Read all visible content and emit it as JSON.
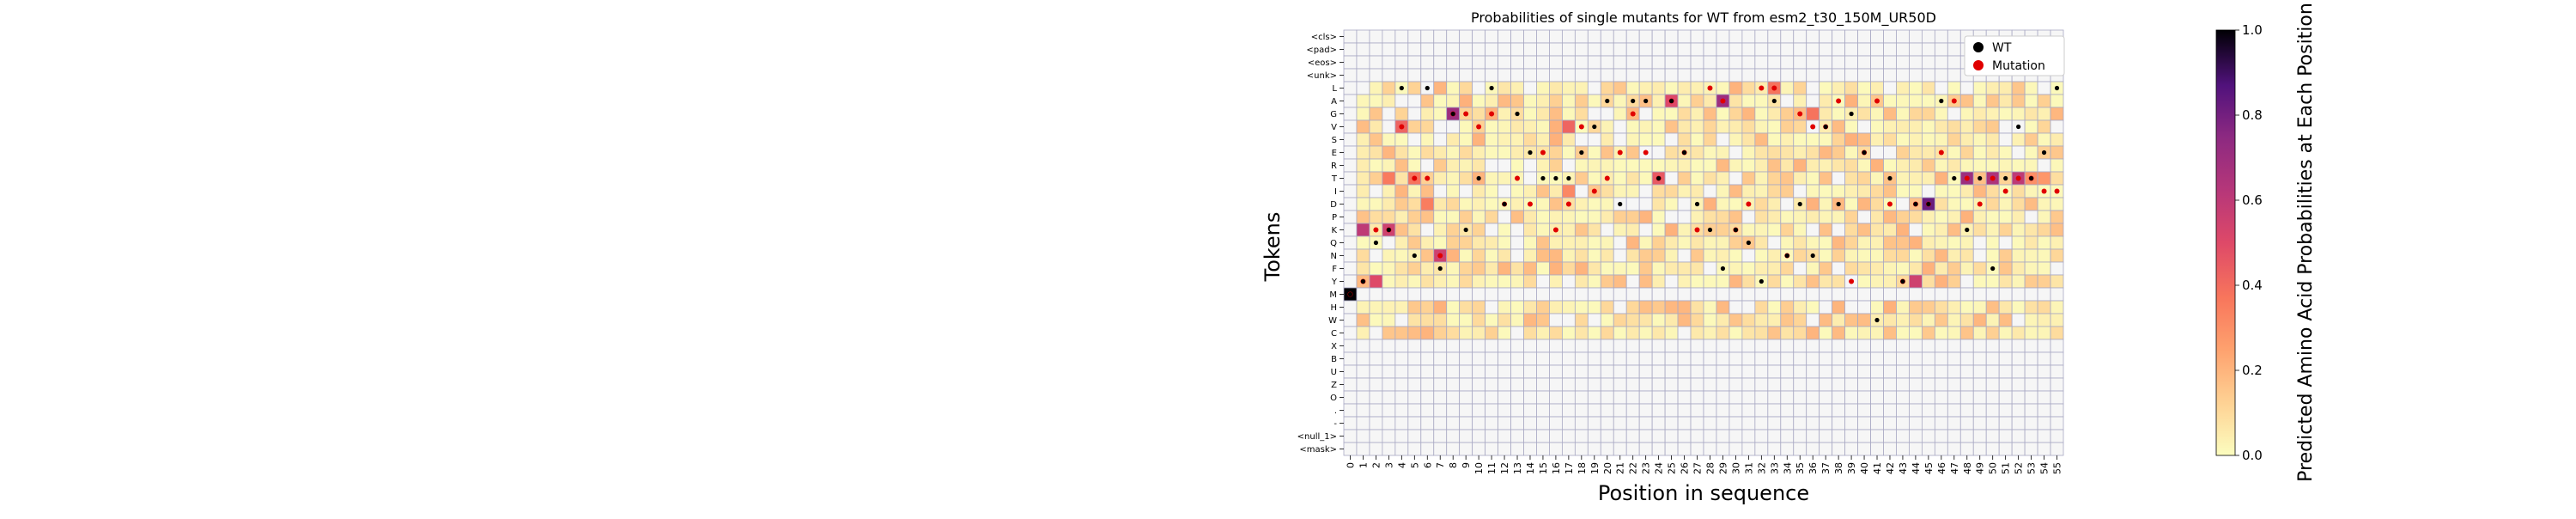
{
  "chart_data": {
    "type": "heatmap",
    "title": "Probabilities of single mutants for WT from esm2_t30_150M_UR50D",
    "xlabel": "Position in sequence",
    "ylabel": "Tokens",
    "colorbar_label": "Predicted Amino Acid Probabilities at Each Position",
    "colorbar_ticks": [
      "0.0",
      "0.2",
      "0.4",
      "0.6",
      "0.8",
      "1.0"
    ],
    "colorbar_range": [
      0,
      1
    ],
    "colormap": "magma_r",
    "positions": [
      "0",
      "1",
      "2",
      "3",
      "4",
      "5",
      "6",
      "7",
      "8",
      "9",
      "10",
      "11",
      "12",
      "13",
      "14",
      "15",
      "16",
      "17",
      "18",
      "19",
      "20",
      "21",
      "22",
      "23",
      "24",
      "25",
      "26",
      "27",
      "28",
      "29",
      "30",
      "31",
      "32",
      "33",
      "34",
      "35",
      "36",
      "37",
      "38",
      "39",
      "40",
      "41",
      "42",
      "43",
      "44",
      "45",
      "46",
      "47",
      "48",
      "49",
      "50",
      "51",
      "52",
      "53",
      "54",
      "55"
    ],
    "tokens": [
      "<cls>",
      "<pad>",
      "<eos>",
      "<unk>",
      "L",
      "A",
      "G",
      "V",
      "S",
      "E",
      "R",
      "T",
      "I",
      "D",
      "P",
      "K",
      "Q",
      "N",
      "F",
      "Y",
      "M",
      "H",
      "W",
      "C",
      "X",
      "B",
      "U",
      "Z",
      "O",
      ".",
      "-",
      "<null_1>",
      "<mask>"
    ],
    "legend": [
      {
        "label": "WT",
        "color": "#000000"
      },
      {
        "label": "Mutation",
        "color": "#e00000"
      }
    ],
    "wt_tokens": [
      "M",
      "Y",
      "Q",
      "K",
      "L",
      "N",
      "L",
      "F",
      "G",
      "K",
      "T",
      "L",
      "D",
      "G",
      "E",
      "T",
      "T",
      "T",
      "E",
      "V",
      "A",
      "D",
      "A",
      "A",
      "T",
      "A",
      "E",
      "D",
      "K",
      "F",
      "K",
      "Q",
      "Y",
      "A",
      "N",
      "D",
      "N",
      "V",
      "D",
      "G",
      "E",
      "W",
      "T",
      "Y",
      "D",
      "D",
      "A",
      "T",
      "K",
      "T",
      "F",
      "T",
      "V",
      "T",
      "E",
      "L"
    ],
    "mutation_tokens": [
      "M",
      "Y",
      "K",
      "K",
      "V",
      "T",
      "T",
      "N",
      "G",
      "G",
      "V",
      "G",
      "D",
      "T",
      "D",
      "E",
      "K",
      "D",
      "V",
      "I",
      "T",
      "E",
      "G",
      "E",
      "T",
      "A",
      "E",
      "K",
      "L",
      "A",
      "K",
      "D",
      "L",
      "L",
      "N",
      "G",
      "V",
      "V",
      "A",
      "Y",
      "E",
      "A",
      "D",
      "Y",
      "D",
      "D",
      "E",
      "A",
      "T",
      "D",
      "T",
      "I",
      "T",
      "T",
      "I",
      "I"
    ],
    "highlight_probs": {
      "M0": 1.0,
      "Y2": 0.5,
      "K1": 0.6,
      "K3": 0.55,
      "G8": 0.7,
      "N7": 0.55,
      "T5": 0.38,
      "T3": 0.36,
      "V4": 0.42,
      "V17": 0.42,
      "A25": 0.5,
      "A29": 0.7,
      "T24": 0.45,
      "L33": 0.38,
      "G36": 0.38,
      "D45": 0.82,
      "T48": 0.7,
      "T50": 0.65,
      "T52": 0.6,
      "T53": 0.3,
      "Y44": 0.55,
      "T54": 0.28,
      "I17": 0.32,
      "D6": 0.35
    }
  }
}
